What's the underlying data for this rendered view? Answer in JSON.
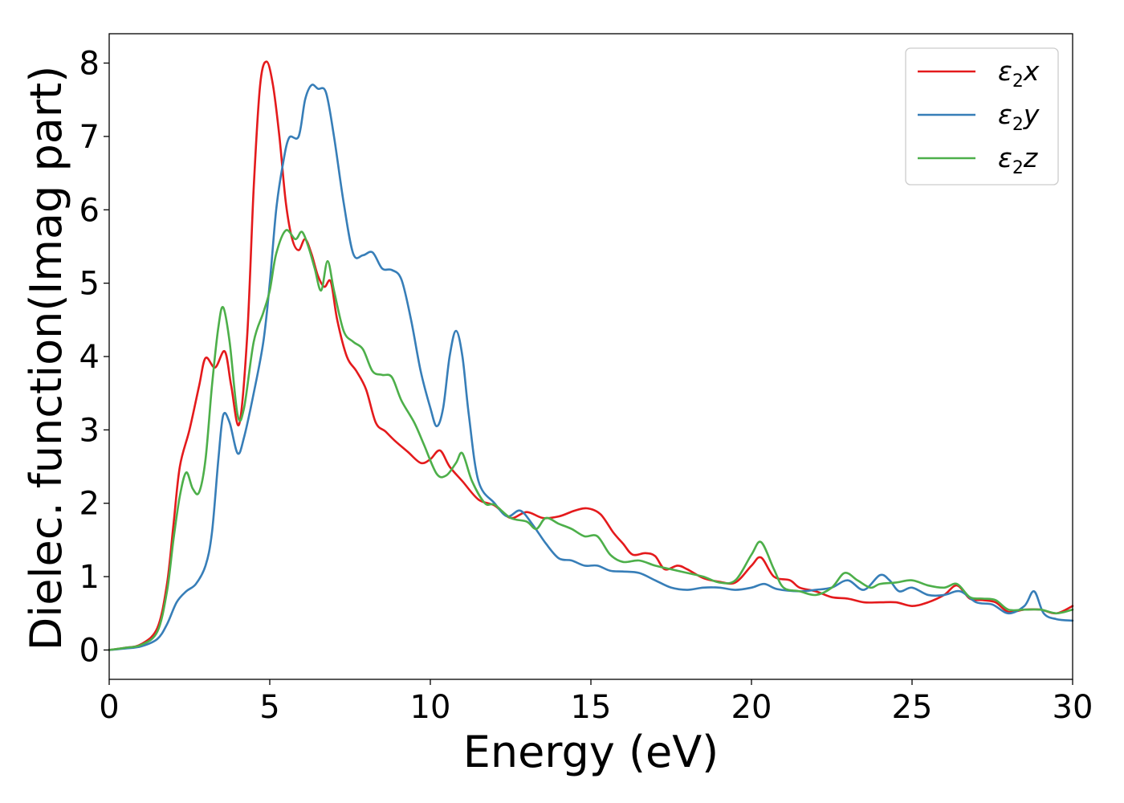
{
  "chart_data": {
    "type": "line",
    "title": "",
    "xlabel": "Energy (eV)",
    "ylabel": "Dielec. function(Imag part)",
    "xlim": [
      0,
      30
    ],
    "ylim": [
      -0.4,
      8.4
    ],
    "xticks": [
      0,
      5,
      10,
      15,
      20,
      25,
      30
    ],
    "yticks": [
      0,
      1,
      2,
      3,
      4,
      5,
      6,
      7,
      8
    ],
    "grid": false,
    "legend_position": "top-right",
    "series": [
      {
        "name": "ε2x",
        "legend": {
          "base": "ε",
          "sub": "2",
          "tail": "x"
        },
        "color": "#e41a1c",
        "points": [
          [
            0,
            0
          ],
          [
            0.5,
            0.03
          ],
          [
            1.0,
            0.08
          ],
          [
            1.5,
            0.3
          ],
          [
            1.8,
            0.9
          ],
          [
            2.0,
            1.7
          ],
          [
            2.2,
            2.5
          ],
          [
            2.5,
            3.0
          ],
          [
            2.8,
            3.6
          ],
          [
            3.0,
            3.98
          ],
          [
            3.3,
            3.85
          ],
          [
            3.6,
            4.07
          ],
          [
            3.8,
            3.6
          ],
          [
            4.05,
            3.08
          ],
          [
            4.3,
            4.3
          ],
          [
            4.5,
            6.3
          ],
          [
            4.7,
            7.7
          ],
          [
            4.9,
            8.02
          ],
          [
            5.1,
            7.7
          ],
          [
            5.3,
            7.0
          ],
          [
            5.5,
            6.1
          ],
          [
            5.7,
            5.6
          ],
          [
            5.9,
            5.45
          ],
          [
            6.1,
            5.6
          ],
          [
            6.3,
            5.4
          ],
          [
            6.5,
            5.1
          ],
          [
            6.7,
            4.95
          ],
          [
            6.9,
            5.02
          ],
          [
            7.1,
            4.5
          ],
          [
            7.4,
            4.0
          ],
          [
            7.7,
            3.8
          ],
          [
            8.0,
            3.55
          ],
          [
            8.3,
            3.1
          ],
          [
            8.6,
            2.98
          ],
          [
            8.9,
            2.85
          ],
          [
            9.3,
            2.7
          ],
          [
            9.7,
            2.55
          ],
          [
            10.0,
            2.6
          ],
          [
            10.3,
            2.72
          ],
          [
            10.6,
            2.5
          ],
          [
            11.0,
            2.3
          ],
          [
            11.5,
            2.05
          ],
          [
            12.0,
            1.97
          ],
          [
            12.5,
            1.8
          ],
          [
            13.0,
            1.88
          ],
          [
            13.5,
            1.8
          ],
          [
            14.0,
            1.82
          ],
          [
            14.5,
            1.9
          ],
          [
            14.9,
            1.93
          ],
          [
            15.3,
            1.85
          ],
          [
            15.7,
            1.6
          ],
          [
            16.0,
            1.45
          ],
          [
            16.3,
            1.3
          ],
          [
            16.7,
            1.32
          ],
          [
            17.0,
            1.28
          ],
          [
            17.3,
            1.1
          ],
          [
            17.7,
            1.15
          ],
          [
            18.0,
            1.1
          ],
          [
            18.5,
            0.98
          ],
          [
            19.0,
            0.93
          ],
          [
            19.5,
            0.92
          ],
          [
            20.0,
            1.15
          ],
          [
            20.3,
            1.26
          ],
          [
            20.7,
            1.0
          ],
          [
            21.2,
            0.95
          ],
          [
            21.5,
            0.85
          ],
          [
            22.0,
            0.8
          ],
          [
            22.5,
            0.72
          ],
          [
            23.0,
            0.7
          ],
          [
            23.5,
            0.65
          ],
          [
            24.0,
            0.65
          ],
          [
            24.5,
            0.65
          ],
          [
            25.0,
            0.6
          ],
          [
            25.5,
            0.65
          ],
          [
            26.0,
            0.75
          ],
          [
            26.4,
            0.88
          ],
          [
            26.8,
            0.7
          ],
          [
            27.2,
            0.68
          ],
          [
            27.6,
            0.65
          ],
          [
            28.0,
            0.52
          ],
          [
            28.5,
            0.55
          ],
          [
            29.0,
            0.55
          ],
          [
            29.5,
            0.5
          ],
          [
            30.0,
            0.6
          ]
        ]
      },
      {
        "name": "ε2y",
        "legend": {
          "base": "ε",
          "sub": "2",
          "tail": "y"
        },
        "color": "#377eb8",
        "points": [
          [
            0,
            0
          ],
          [
            0.5,
            0.02
          ],
          [
            1.0,
            0.05
          ],
          [
            1.5,
            0.15
          ],
          [
            1.8,
            0.35
          ],
          [
            2.1,
            0.65
          ],
          [
            2.4,
            0.8
          ],
          [
            2.7,
            0.9
          ],
          [
            3.0,
            1.15
          ],
          [
            3.2,
            1.6
          ],
          [
            3.4,
            2.6
          ],
          [
            3.55,
            3.2
          ],
          [
            3.75,
            3.1
          ],
          [
            4.0,
            2.68
          ],
          [
            4.2,
            2.9
          ],
          [
            4.5,
            3.5
          ],
          [
            4.8,
            4.2
          ],
          [
            5.0,
            5.0
          ],
          [
            5.2,
            6.0
          ],
          [
            5.4,
            6.6
          ],
          [
            5.6,
            6.98
          ],
          [
            5.9,
            7.0
          ],
          [
            6.1,
            7.5
          ],
          [
            6.3,
            7.7
          ],
          [
            6.5,
            7.65
          ],
          [
            6.75,
            7.6
          ],
          [
            7.0,
            7.0
          ],
          [
            7.3,
            6.1
          ],
          [
            7.6,
            5.4
          ],
          [
            7.9,
            5.38
          ],
          [
            8.2,
            5.42
          ],
          [
            8.5,
            5.2
          ],
          [
            8.8,
            5.18
          ],
          [
            9.1,
            5.05
          ],
          [
            9.4,
            4.5
          ],
          [
            9.7,
            3.8
          ],
          [
            10.0,
            3.3
          ],
          [
            10.2,
            3.05
          ],
          [
            10.4,
            3.3
          ],
          [
            10.6,
            4.0
          ],
          [
            10.8,
            4.35
          ],
          [
            11.0,
            4.0
          ],
          [
            11.2,
            3.2
          ],
          [
            11.5,
            2.3
          ],
          [
            12.0,
            2.0
          ],
          [
            12.4,
            1.82
          ],
          [
            12.8,
            1.9
          ],
          [
            13.2,
            1.7
          ],
          [
            13.6,
            1.45
          ],
          [
            14.0,
            1.25
          ],
          [
            14.4,
            1.22
          ],
          [
            14.8,
            1.15
          ],
          [
            15.2,
            1.15
          ],
          [
            15.6,
            1.08
          ],
          [
            16.0,
            1.07
          ],
          [
            16.5,
            1.05
          ],
          [
            17.0,
            0.95
          ],
          [
            17.5,
            0.85
          ],
          [
            18.0,
            0.82
          ],
          [
            18.5,
            0.85
          ],
          [
            19.0,
            0.85
          ],
          [
            19.5,
            0.82
          ],
          [
            20.0,
            0.85
          ],
          [
            20.4,
            0.9
          ],
          [
            20.8,
            0.83
          ],
          [
            21.5,
            0.8
          ],
          [
            22.0,
            0.82
          ],
          [
            22.5,
            0.85
          ],
          [
            23.0,
            0.95
          ],
          [
            23.5,
            0.82
          ],
          [
            24.0,
            1.02
          ],
          [
            24.3,
            0.95
          ],
          [
            24.6,
            0.8
          ],
          [
            25.0,
            0.85
          ],
          [
            25.5,
            0.75
          ],
          [
            26.0,
            0.75
          ],
          [
            26.5,
            0.8
          ],
          [
            27.0,
            0.65
          ],
          [
            27.5,
            0.62
          ],
          [
            28.0,
            0.5
          ],
          [
            28.5,
            0.6
          ],
          [
            28.8,
            0.8
          ],
          [
            29.1,
            0.5
          ],
          [
            29.5,
            0.42
          ],
          [
            30.0,
            0.4
          ]
        ]
      },
      {
        "name": "ε2z",
        "legend": {
          "base": "ε",
          "sub": "2",
          "tail": "z"
        },
        "color": "#4daf4a",
        "points": [
          [
            0,
            0
          ],
          [
            0.5,
            0.03
          ],
          [
            1.0,
            0.07
          ],
          [
            1.5,
            0.25
          ],
          [
            1.8,
            0.8
          ],
          [
            2.0,
            1.5
          ],
          [
            2.2,
            2.1
          ],
          [
            2.4,
            2.42
          ],
          [
            2.6,
            2.2
          ],
          [
            2.8,
            2.15
          ],
          [
            3.0,
            2.6
          ],
          [
            3.2,
            3.6
          ],
          [
            3.4,
            4.4
          ],
          [
            3.55,
            4.67
          ],
          [
            3.75,
            4.2
          ],
          [
            4.0,
            3.2
          ],
          [
            4.2,
            3.3
          ],
          [
            4.5,
            4.2
          ],
          [
            4.8,
            4.6
          ],
          [
            5.0,
            4.9
          ],
          [
            5.2,
            5.4
          ],
          [
            5.5,
            5.72
          ],
          [
            5.8,
            5.6
          ],
          [
            6.0,
            5.7
          ],
          [
            6.2,
            5.5
          ],
          [
            6.4,
            5.2
          ],
          [
            6.6,
            4.9
          ],
          [
            6.8,
            5.3
          ],
          [
            7.0,
            4.9
          ],
          [
            7.3,
            4.35
          ],
          [
            7.6,
            4.2
          ],
          [
            7.9,
            4.1
          ],
          [
            8.2,
            3.8
          ],
          [
            8.5,
            3.75
          ],
          [
            8.8,
            3.72
          ],
          [
            9.1,
            3.4
          ],
          [
            9.5,
            3.1
          ],
          [
            9.8,
            2.8
          ],
          [
            10.2,
            2.4
          ],
          [
            10.5,
            2.38
          ],
          [
            10.8,
            2.55
          ],
          [
            11.0,
            2.68
          ],
          [
            11.3,
            2.3
          ],
          [
            11.7,
            2.0
          ],
          [
            12.0,
            1.98
          ],
          [
            12.5,
            1.8
          ],
          [
            13.0,
            1.75
          ],
          [
            13.3,
            1.65
          ],
          [
            13.6,
            1.8
          ],
          [
            14.0,
            1.72
          ],
          [
            14.4,
            1.65
          ],
          [
            14.8,
            1.55
          ],
          [
            15.2,
            1.55
          ],
          [
            15.6,
            1.3
          ],
          [
            16.0,
            1.2
          ],
          [
            16.5,
            1.22
          ],
          [
            17.0,
            1.15
          ],
          [
            17.5,
            1.1
          ],
          [
            18.0,
            1.05
          ],
          [
            18.5,
            1.0
          ],
          [
            19.0,
            0.92
          ],
          [
            19.5,
            0.95
          ],
          [
            20.0,
            1.3
          ],
          [
            20.3,
            1.47
          ],
          [
            20.7,
            1.1
          ],
          [
            21.0,
            0.85
          ],
          [
            21.5,
            0.8
          ],
          [
            22.0,
            0.75
          ],
          [
            22.5,
            0.85
          ],
          [
            22.9,
            1.05
          ],
          [
            23.3,
            0.95
          ],
          [
            23.7,
            0.85
          ],
          [
            24.0,
            0.9
          ],
          [
            24.5,
            0.92
          ],
          [
            25.0,
            0.95
          ],
          [
            25.5,
            0.88
          ],
          [
            26.0,
            0.85
          ],
          [
            26.4,
            0.9
          ],
          [
            26.8,
            0.72
          ],
          [
            27.2,
            0.7
          ],
          [
            27.6,
            0.68
          ],
          [
            28.0,
            0.55
          ],
          [
            28.5,
            0.55
          ],
          [
            29.0,
            0.55
          ],
          [
            29.5,
            0.5
          ],
          [
            30.0,
            0.55
          ]
        ]
      }
    ]
  }
}
